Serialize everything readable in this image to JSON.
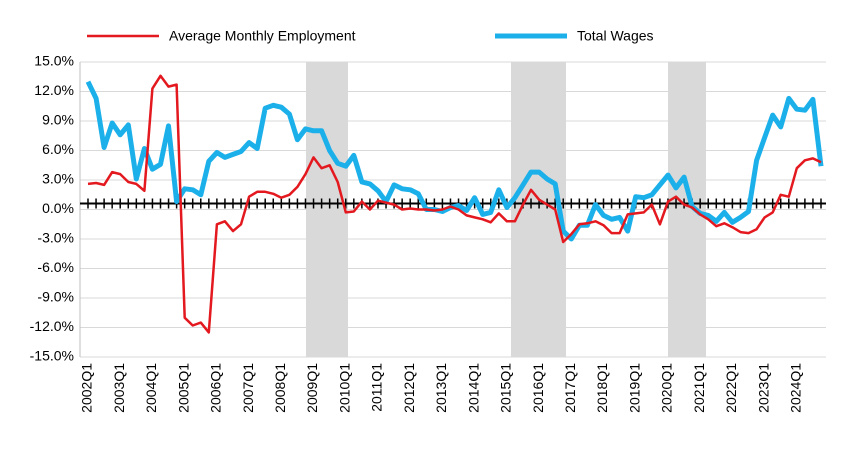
{
  "chart_data": {
    "type": "line",
    "categories": [
      "2002Q1",
      null,
      null,
      null,
      "2003Q1",
      null,
      null,
      null,
      "2004Q1",
      null,
      null,
      null,
      "2005Q1",
      null,
      null,
      null,
      "2006Q1",
      null,
      null,
      null,
      "2007Q1",
      null,
      null,
      null,
      "2008Q1",
      null,
      null,
      null,
      "2009Q1",
      null,
      null,
      null,
      "2010Q1",
      null,
      null,
      null,
      "2011Q1",
      null,
      null,
      null,
      "2012Q1",
      null,
      null,
      null,
      "2013Q1",
      null,
      null,
      null,
      "2014Q1",
      null,
      null,
      null,
      "2015Q1",
      null,
      null,
      null,
      "2016Q1",
      null,
      null,
      null,
      "2017Q1",
      null,
      null,
      null,
      "2018Q1",
      null,
      null,
      null,
      "2019Q1",
      null,
      null,
      null,
      "2020Q1",
      null,
      null,
      null,
      "2021Q1",
      null,
      null,
      null,
      "2022Q1",
      null,
      null,
      null,
      "2023Q1",
      null,
      null,
      null,
      "2024Q1",
      null,
      null,
      null
    ],
    "series": [
      {
        "name": "Average Monthly Employment",
        "color": "#e3191f",
        "values": [
          2.6,
          2.7,
          2.5,
          3.8,
          3.6,
          2.8,
          2.6,
          1.9,
          12.3,
          13.6,
          12.5,
          12.7,
          -11.0,
          -11.8,
          -11.5,
          -12.5,
          -1.5,
          -1.2,
          -2.2,
          -1.5,
          1.3,
          1.8,
          1.8,
          1.6,
          1.2,
          1.5,
          2.3,
          3.6,
          5.3,
          4.2,
          4.5,
          2.8,
          -0.3,
          -0.2,
          0.8,
          0.0,
          0.9,
          0.7,
          0.5,
          0.0,
          0.1,
          0.0,
          0.0,
          -0.1,
          0.0,
          0.3,
          0.0,
          -0.6,
          -0.8,
          -1.0,
          -1.3,
          -0.4,
          -1.2,
          -1.2,
          0.5,
          2.0,
          1.0,
          0.5,
          0.0,
          -3.3,
          -2.5,
          -1.5,
          -1.4,
          -1.2,
          -1.6,
          -2.4,
          -2.4,
          -0.5,
          -0.4,
          -0.3,
          0.5,
          -1.5,
          0.8,
          1.3,
          0.5,
          0.2,
          -0.5,
          -1.0,
          -1.7,
          -1.4,
          -1.8,
          -2.3,
          -2.4,
          -2.0,
          -0.8,
          -0.3,
          1.5,
          1.3,
          4.2,
          5.0,
          5.2,
          4.8
        ]
      },
      {
        "name": "Total Wages",
        "color": "#1cb0ea",
        "values": [
          13.0,
          11.3,
          6.3,
          8.8,
          7.6,
          8.6,
          3.1,
          6.2,
          4.1,
          4.6,
          8.5,
          0.8,
          2.1,
          2.0,
          1.5,
          4.9,
          5.8,
          5.3,
          5.6,
          5.9,
          6.8,
          6.2,
          10.3,
          10.6,
          10.4,
          9.7,
          7.1,
          8.2,
          8.0,
          8.0,
          6.0,
          4.7,
          4.4,
          5.5,
          2.8,
          2.6,
          1.9,
          0.8,
          2.5,
          2.1,
          2.0,
          1.6,
          0.0,
          0.0,
          -0.2,
          0.2,
          0.4,
          -0.1,
          1.2,
          -0.5,
          -0.3,
          2.0,
          0.2,
          1.2,
          2.5,
          3.8,
          3.8,
          3.1,
          2.6,
          -2.2,
          -3.0,
          -1.6,
          -1.6,
          0.5,
          -0.6,
          -1.0,
          -0.8,
          -2.2,
          1.3,
          1.2,
          1.5,
          2.5,
          3.5,
          2.2,
          3.3,
          0.3,
          -0.4,
          -0.6,
          -1.2,
          -0.3,
          -1.3,
          -0.8,
          -0.2,
          5.0,
          7.3,
          9.6,
          8.4,
          11.3,
          10.2,
          10.1,
          11.2,
          4.4
        ]
      }
    ],
    "ylim": [
      -15,
      15
    ],
    "yticks": [
      {
        "value": -15,
        "label": "-15.0%"
      },
      {
        "value": -12,
        "label": "-12.0%"
      },
      {
        "value": -9,
        "label": "-9.0%"
      },
      {
        "value": -6,
        "label": "-6.0%"
      },
      {
        "value": -3,
        "label": "-3.0%"
      },
      {
        "value": 0,
        "label": "0.0%"
      },
      {
        "value": 3,
        "label": "3.0%"
      },
      {
        "value": 6,
        "label": "6.0%"
      },
      {
        "value": 9,
        "label": "9.0%"
      },
      {
        "value": 12,
        "label": "12.0%"
      },
      {
        "value": 15,
        "label": "15.0%"
      }
    ],
    "grid": true,
    "legend": "top"
  }
}
